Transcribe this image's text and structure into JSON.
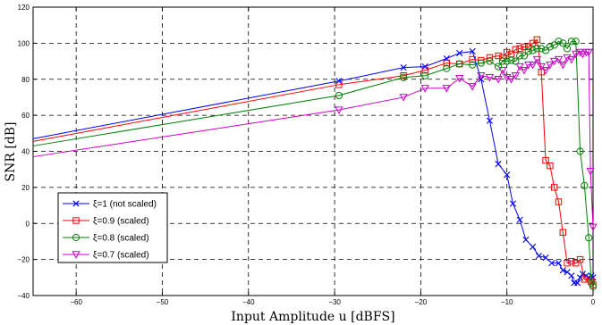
{
  "chart_data": {
    "type": "line",
    "xlabel": "Input Amplitude u [dBFS]",
    "ylabel": "SNR [dB]",
    "xlim": [
      -65,
      0
    ],
    "ylim": [
      -40,
      120
    ],
    "xticks": [
      -60,
      -50,
      -40,
      -30,
      -20,
      -10,
      0
    ],
    "yticks": [
      -40,
      -20,
      0,
      20,
      40,
      60,
      80,
      100,
      120
    ],
    "grid": true,
    "legend_position": "bottom-left",
    "series": [
      {
        "name": "ξ=1 (not scaled)",
        "color": "#0000ff",
        "marker": "x",
        "points": [
          [
            -65,
            47
          ],
          [
            -29.5,
            79
          ],
          [
            -22,
            86.5
          ],
          [
            -19.5,
            87
          ],
          [
            -17,
            91.5
          ],
          [
            -15.5,
            94.5
          ],
          [
            -14,
            95.5
          ],
          [
            -13,
            80
          ],
          [
            -12,
            57
          ],
          [
            -11,
            33
          ],
          [
            -10,
            27
          ],
          [
            -9.3,
            11
          ],
          [
            -8.5,
            2
          ],
          [
            -7.8,
            -9
          ],
          [
            -7,
            -13
          ],
          [
            -6.3,
            -18
          ],
          [
            -5.5,
            -19
          ],
          [
            -4.8,
            -22
          ],
          [
            -4,
            -22
          ],
          [
            -3.5,
            -26
          ],
          [
            -3,
            -27
          ],
          [
            -2.5,
            -29
          ],
          [
            -2.2,
            -33
          ],
          [
            -1.8,
            -33
          ],
          [
            -1.5,
            -30
          ],
          [
            -1.2,
            -28
          ],
          [
            -0.8,
            -29
          ],
          [
            -0.5,
            -30
          ],
          [
            -0.2,
            -29
          ],
          [
            0,
            -30
          ]
        ]
      },
      {
        "name": "ξ=0.9 (scaled)",
        "color": "#ff0000",
        "marker": "square",
        "points": [
          [
            -65,
            45.5
          ],
          [
            -29.5,
            77
          ],
          [
            -22,
            82
          ],
          [
            -19.5,
            85
          ],
          [
            -17,
            89
          ],
          [
            -15.5,
            88.5
          ],
          [
            -14,
            91
          ],
          [
            -13,
            90.5
          ],
          [
            -12,
            92
          ],
          [
            -11,
            93
          ],
          [
            -10.5,
            92
          ],
          [
            -10,
            95
          ],
          [
            -9.5,
            94
          ],
          [
            -9,
            96.5
          ],
          [
            -8.5,
            97
          ],
          [
            -8,
            98
          ],
          [
            -7.5,
            98
          ],
          [
            -7,
            100
          ],
          [
            -6.5,
            102
          ],
          [
            -6,
            84
          ],
          [
            -5.5,
            35
          ],
          [
            -5,
            32
          ],
          [
            -4.5,
            20
          ],
          [
            -4,
            12
          ],
          [
            -3.5,
            -5
          ],
          [
            -3,
            -22
          ],
          [
            -2.5,
            -21
          ],
          [
            -2,
            -22
          ],
          [
            -1.5,
            -20
          ],
          [
            -1,
            -31
          ],
          [
            -0.5,
            -31
          ],
          [
            -0.2,
            -32
          ],
          [
            0,
            -34
          ]
        ]
      },
      {
        "name": "ξ=0.8 (scaled)",
        "color": "#008000",
        "marker": "circle",
        "points": [
          [
            -65,
            43
          ],
          [
            -29.5,
            71
          ],
          [
            -22,
            81
          ],
          [
            -19.5,
            82
          ],
          [
            -17,
            86
          ],
          [
            -15.5,
            88.5
          ],
          [
            -14,
            88
          ],
          [
            -13,
            89
          ],
          [
            -12,
            90
          ],
          [
            -11,
            87
          ],
          [
            -10.5,
            90
          ],
          [
            -10,
            90
          ],
          [
            -9.5,
            90.5
          ],
          [
            -9,
            90
          ],
          [
            -8.5,
            93
          ],
          [
            -8,
            93
          ],
          [
            -7.5,
            95.5
          ],
          [
            -7,
            96
          ],
          [
            -6.5,
            97
          ],
          [
            -6,
            97
          ],
          [
            -5.5,
            96
          ],
          [
            -5,
            98
          ],
          [
            -4.5,
            99
          ],
          [
            -4,
            101
          ],
          [
            -3.5,
            100
          ],
          [
            -3,
            97
          ],
          [
            -2.5,
            101
          ],
          [
            -2,
            101
          ],
          [
            -1.5,
            40
          ],
          [
            -1,
            21
          ],
          [
            -0.5,
            -8
          ],
          [
            -0.2,
            -33
          ],
          [
            0,
            -35
          ]
        ]
      },
      {
        "name": "ξ=0.7 (scaled)",
        "color": "#cc00cc",
        "marker": "triangle-down",
        "points": [
          [
            -65,
            37
          ],
          [
            -29.5,
            63
          ],
          [
            -22,
            70
          ],
          [
            -19.5,
            75
          ],
          [
            -17,
            75
          ],
          [
            -15.5,
            80.5
          ],
          [
            -14,
            76
          ],
          [
            -13,
            82
          ],
          [
            -12,
            81
          ],
          [
            -11,
            80
          ],
          [
            -10.5,
            85
          ],
          [
            -10,
            81
          ],
          [
            -9.5,
            80
          ],
          [
            -9,
            82
          ],
          [
            -8.5,
            87
          ],
          [
            -8,
            85
          ],
          [
            -7.5,
            88
          ],
          [
            -7,
            88
          ],
          [
            -6.5,
            91
          ],
          [
            -6,
            87
          ],
          [
            -5.5,
            85
          ],
          [
            -5,
            88
          ],
          [
            -4.5,
            90
          ],
          [
            -4,
            91
          ],
          [
            -3.5,
            88
          ],
          [
            -3,
            92
          ],
          [
            -2.5,
            91
          ],
          [
            -2,
            94
          ],
          [
            -1.5,
            95
          ],
          [
            -1.2,
            94
          ],
          [
            -0.8,
            95
          ],
          [
            -0.5,
            95
          ],
          [
            -0.3,
            29
          ],
          [
            0,
            -2
          ]
        ]
      }
    ]
  }
}
